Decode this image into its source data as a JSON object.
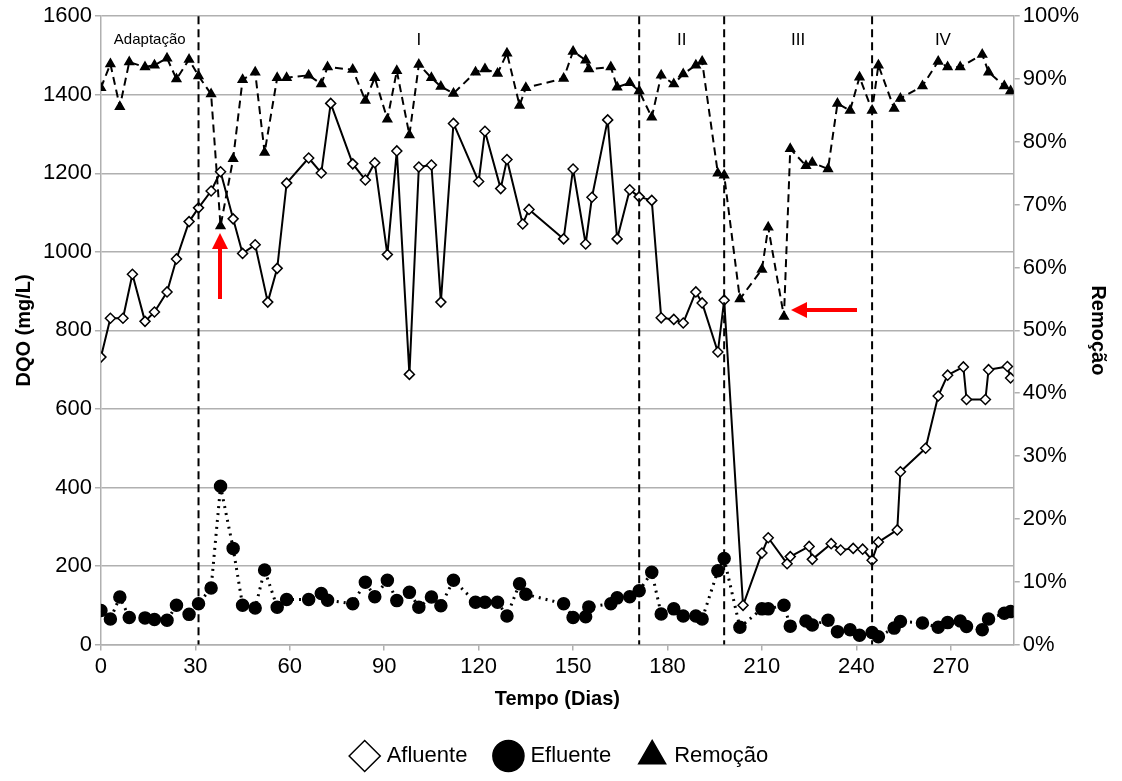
{
  "chart_data": {
    "type": "line",
    "xlabel": "Tempo (Dias)",
    "ylabel": "DQO (mg/L)",
    "y2label": "Remoção",
    "xlim": [
      0,
      290
    ],
    "xticks": [
      0,
      30,
      60,
      90,
      120,
      150,
      180,
      210,
      240,
      270
    ],
    "ylim": [
      0,
      1600
    ],
    "yticks": [
      0,
      200,
      400,
      600,
      800,
      1000,
      1200,
      1400,
      1600
    ],
    "y2lim": [
      0,
      100
    ],
    "y2ticks": [
      {
        "value": 0,
        "label": "0%"
      },
      {
        "value": 10,
        "label": "10%"
      },
      {
        "value": 20,
        "label": "20%"
      },
      {
        "value": 30,
        "label": "30%"
      },
      {
        "value": 40,
        "label": "40%"
      },
      {
        "value": 50,
        "label": "50%"
      },
      {
        "value": 60,
        "label": "60%"
      },
      {
        "value": 70,
        "label": "70%"
      },
      {
        "value": 80,
        "label": "80%"
      },
      {
        "value": 90,
        "label": "90%"
      },
      {
        "value": 100,
        "label": "100%"
      }
    ],
    "grid": "y",
    "legend": "bottom",
    "series": [
      {
        "name": "Afluente",
        "color": "#000000",
        "marker": "diamond",
        "line_style": "solid",
        "x": [
          0,
          3,
          7,
          10,
          14,
          17,
          21,
          24,
          28,
          31,
          35,
          38,
          42,
          45,
          49,
          53,
          56,
          59,
          66,
          70,
          73,
          80,
          84,
          87,
          91,
          94,
          98,
          101,
          105,
          108,
          112,
          120,
          122,
          127,
          129,
          134,
          136,
          147,
          150,
          154,
          156,
          161,
          164,
          168,
          171,
          175,
          178,
          182,
          185,
          189,
          191,
          196,
          198,
          204,
          210,
          212,
          218,
          219,
          225,
          226,
          232,
          235,
          239,
          242,
          245,
          247,
          253,
          254,
          262,
          266,
          269,
          274,
          275,
          281,
          282,
          288,
          289
        ],
        "values": [
          732,
          831,
          831,
          943,
          823,
          847,
          898,
          982,
          1077,
          1112,
          1155,
          1204,
          1084,
          996,
          1018,
          872,
          958,
          1175,
          1239,
          1201,
          1378,
          1224,
          1183,
          1227,
          993,
          1257,
          688,
          1216,
          1221,
          872,
          1327,
          1179,
          1307,
          1161,
          1235,
          1071,
          1108,
          1033,
          1211,
          1020,
          1139,
          1336,
          1033,
          1158,
          1140,
          1131,
          832,
          828,
          819,
          898,
          870,
          745,
          877,
          100,
          233,
          272,
          206,
          224,
          250,
          217,
          257,
          241,
          245,
          243,
          215,
          261,
          292,
          440,
          500,
          633,
          686,
          707,
          624,
          624,
          700,
          708,
          679
        ]
      },
      {
        "name": "Efluente",
        "color": "#000000",
        "marker": "circle",
        "line_style": "dotted",
        "x": [
          0,
          3,
          6,
          9,
          14,
          17,
          21,
          24,
          28,
          31,
          35,
          38,
          42,
          45,
          49,
          52,
          56,
          59,
          66,
          70,
          72,
          80,
          84,
          87,
          91,
          94,
          98,
          101,
          105,
          108,
          112,
          119,
          122,
          126,
          129,
          133,
          135,
          147,
          150,
          154,
          155,
          162,
          164,
          168,
          171,
          175,
          178,
          182,
          185,
          189,
          191,
          196,
          198,
          203,
          210,
          212,
          217,
          219,
          224,
          226,
          231,
          234,
          238,
          241,
          245,
          247,
          252,
          254,
          261,
          266,
          269,
          273,
          275,
          280,
          282,
          287,
          289
        ],
        "values": [
          87,
          65,
          121,
          69,
          68,
          64,
          62,
          100,
          77,
          104,
          144,
          403,
          245,
          100,
          93,
          190,
          95,
          115,
          115,
          130,
          113,
          104,
          159,
          122,
          164,
          112,
          133,
          95,
          121,
          99,
          164,
          108,
          108,
          108,
          73,
          155,
          128,
          104,
          69,
          71,
          96,
          104,
          119,
          122,
          137,
          184,
          78,
          91,
          73,
          73,
          65,
          188,
          219,
          44,
          91,
          91,
          100,
          47,
          60,
          50,
          62,
          33,
          38,
          24,
          31,
          20,
          42,
          59,
          55,
          44,
          56,
          60,
          46,
          38,
          65,
          80,
          84
        ]
      },
      {
        "name": "Remoção",
        "color": "#000000",
        "marker": "triangle",
        "line_style": "dashed",
        "axis": "y2",
        "x": [
          0,
          3,
          6,
          9,
          14,
          17,
          21,
          24,
          28,
          31,
          35,
          38,
          42,
          45,
          49,
          52,
          56,
          59,
          66,
          70,
          72,
          80,
          84,
          87,
          91,
          94,
          98,
          101,
          105,
          108,
          112,
          119,
          122,
          126,
          129,
          133,
          135,
          147,
          150,
          154,
          155,
          162,
          164,
          168,
          171,
          175,
          178,
          182,
          185,
          189,
          191,
          196,
          198,
          203,
          210,
          212,
          217,
          219,
          224,
          226,
          231,
          234,
          238,
          241,
          245,
          247,
          252,
          254,
          261,
          266,
          269,
          273,
          280,
          282,
          287,
          289
        ],
        "values": [
          88.6,
          92.4,
          85.6,
          92.7,
          91.9,
          92.2,
          93.3,
          90,
          93.1,
          90.5,
          87.6,
          66.6,
          77.3,
          89.9,
          91.1,
          78.3,
          90.2,
          90.2,
          90.6,
          89.2,
          91.9,
          91.5,
          86.6,
          90.2,
          83.6,
          91.3,
          81.1,
          92.3,
          90.2,
          88.8,
          87.7,
          91.1,
          91.6,
          90.9,
          94.1,
          85.8,
          88.6,
          90.1,
          94.4,
          93,
          91.6,
          91.9,
          88.7,
          89.4,
          88.1,
          83.9,
          90.6,
          89.2,
          90.8,
          92.2,
          92.8,
          75,
          74.7,
          55,
          59.7,
          66.4,
          52.2,
          78.9,
          76.2,
          76.7,
          75.7,
          86.1,
          85,
          90.3,
          85,
          92.2,
          85.3,
          86.9,
          88.9,
          92.8,
          91.9,
          91.9,
          93.9,
          91.1,
          88.9,
          88.1
        ]
      }
    ],
    "ref_lines": [
      {
        "axis": "x",
        "value": 31,
        "color": "#000000",
        "line_style": "dashed"
      },
      {
        "axis": "x",
        "value": 171,
        "color": "#000000",
        "line_style": "dashed"
      },
      {
        "axis": "x",
        "value": 198,
        "color": "#000000",
        "line_style": "dashed"
      },
      {
        "axis": "x",
        "value": 245,
        "color": "#000000",
        "line_style": "dashed"
      }
    ],
    "annotations": [
      "Adaptação",
      "I",
      "II",
      "III",
      "IV"
    ]
  }
}
